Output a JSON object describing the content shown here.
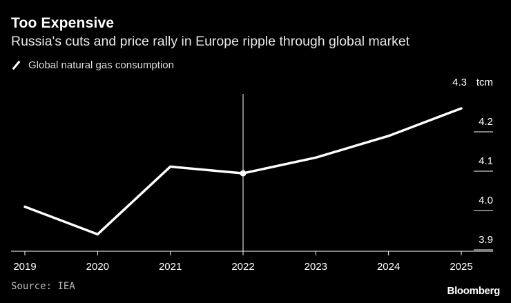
{
  "header": {
    "title": "Too Expensive",
    "subtitle": "Russia's cuts and price rally in Europe ripple through global market"
  },
  "footer": {
    "source": "Source: IEA",
    "brand": "Bloomberg"
  },
  "colors": {
    "background": "#000000",
    "line": "#ffffff",
    "axis": "#ffffff"
  },
  "chart_data": {
    "type": "line",
    "title": "Too Expensive",
    "subtitle": "Russia's cuts and price rally in Europe ripple through global market",
    "x": [
      "2019",
      "2020",
      "2021",
      "2022",
      "2023",
      "2024",
      "2025"
    ],
    "series": [
      {
        "name": "Global natural gas consumption",
        "values": [
          3.985,
          3.915,
          4.087,
          4.07,
          4.11,
          4.165,
          4.235
        ]
      }
    ],
    "y_unit": "tcm",
    "y_ticks": [
      "3.9",
      "4.0",
      "4.1",
      "4.2",
      "4.3"
    ],
    "ylim": [
      3.9,
      4.3
    ],
    "highlight": {
      "x": "2022",
      "marker": "vertical-line-with-dot"
    },
    "grid": false,
    "legend_position": "top-left",
    "y_axis_position": "right"
  }
}
